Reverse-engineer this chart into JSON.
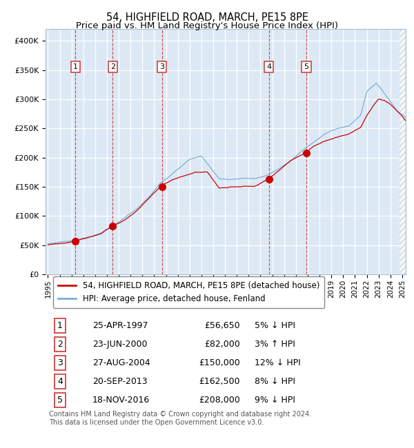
{
  "title": "54, HIGHFIELD ROAD, MARCH, PE15 8PE",
  "subtitle": "Price paid vs. HM Land Registry's House Price Index (HPI)",
  "ylim": [
    0,
    420000
  ],
  "yticks": [
    0,
    50000,
    100000,
    150000,
    200000,
    250000,
    300000,
    350000,
    400000
  ],
  "ytick_labels": [
    "£0",
    "£50K",
    "£100K",
    "£150K",
    "£200K",
    "£250K",
    "£300K",
    "£350K",
    "£400K"
  ],
  "xlim_start": 1995.0,
  "xlim_end": 2025.3,
  "plot_bg_color": "#dce9f5",
  "grid_color": "#ffffff",
  "red_line_color": "#cc0000",
  "blue_line_color": "#7aafd4",
  "sale_marker_color": "#cc0000",
  "vline_color": "#cc3333",
  "legend_label_red": "54, HIGHFIELD ROAD, MARCH, PE15 8PE (detached house)",
  "legend_label_blue": "HPI: Average price, detached house, Fenland",
  "footer_text": "Contains HM Land Registry data © Crown copyright and database right 2024.\nThis data is licensed under the Open Government Licence v3.0.",
  "sales": [
    {
      "num": 1,
      "date_dec": 1997.32,
      "price": 56650,
      "label": "25-APR-1997",
      "price_str": "£56,650",
      "hpi_str": "5% ↓ HPI"
    },
    {
      "num": 2,
      "date_dec": 2000.48,
      "price": 82000,
      "label": "23-JUN-2000",
      "price_str": "£82,000",
      "hpi_str": "3% ↑ HPI"
    },
    {
      "num": 3,
      "date_dec": 2004.66,
      "price": 150000,
      "label": "27-AUG-2004",
      "price_str": "£150,000",
      "hpi_str": "12% ↓ HPI"
    },
    {
      "num": 4,
      "date_dec": 2013.72,
      "price": 162500,
      "label": "20-SEP-2013",
      "price_str": "£162,500",
      "hpi_str": "8% ↓ HPI"
    },
    {
      "num": 5,
      "date_dec": 2016.88,
      "price": 208000,
      "label": "18-NOV-2016",
      "price_str": "£208,000",
      "hpi_str": "9% ↓ HPI"
    }
  ],
  "hatch_start": 2024.75,
  "title_fontsize": 10.5,
  "subtitle_fontsize": 9.5,
  "tick_fontsize": 8,
  "legend_fontsize": 8.5,
  "table_fontsize": 9,
  "footer_fontsize": 7
}
